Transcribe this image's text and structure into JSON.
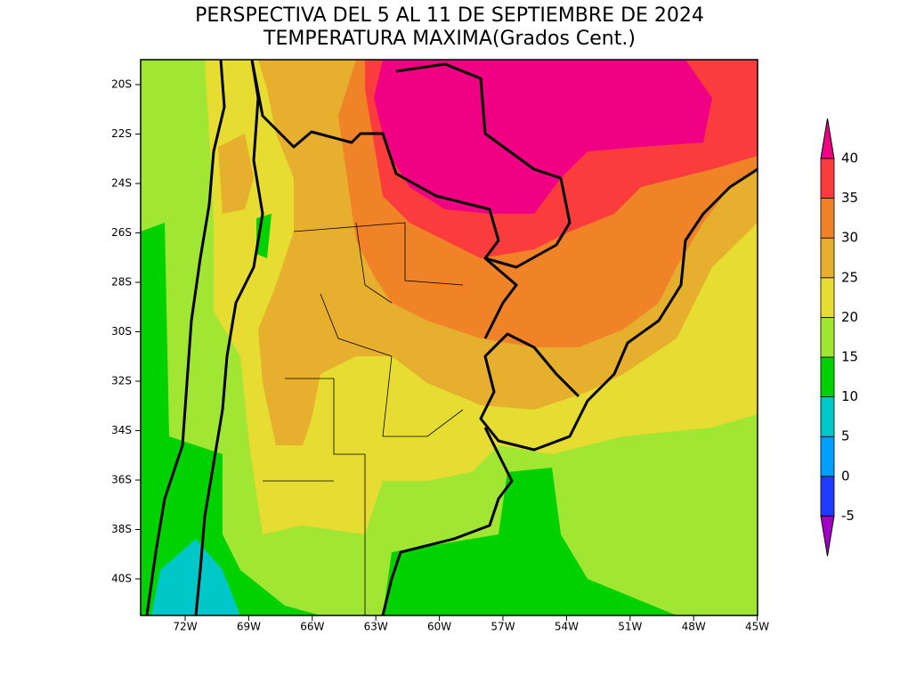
{
  "title": [
    "PERSPECTIVA DEL 5 AL 11 DE SEPTIEMBRE DE 2024",
    "TEMPERATURA MAXIMA(Grados Cent.)"
  ],
  "lat_labels": [
    "20S",
    "22S",
    "24S",
    "26S",
    "28S",
    "30S",
    "32S",
    "34S",
    "36S",
    "38S",
    "40S"
  ],
  "lon_labels": [
    "72W",
    "69W",
    "66W",
    "63W",
    "60W",
    "57W",
    "54W",
    "51W",
    "48W",
    "45W"
  ],
  "colorbar": {
    "levels": [
      -5,
      0,
      5,
      10,
      15,
      20,
      25,
      30,
      35,
      40
    ],
    "colors": [
      "#a000c8",
      "#1e3cff",
      "#00a0ff",
      "#00c8c8",
      "#00d200",
      "#a0e632",
      "#e6dc32",
      "#e6af2d",
      "#f08228",
      "#fa3c3c",
      "#f00082"
    ]
  }
}
